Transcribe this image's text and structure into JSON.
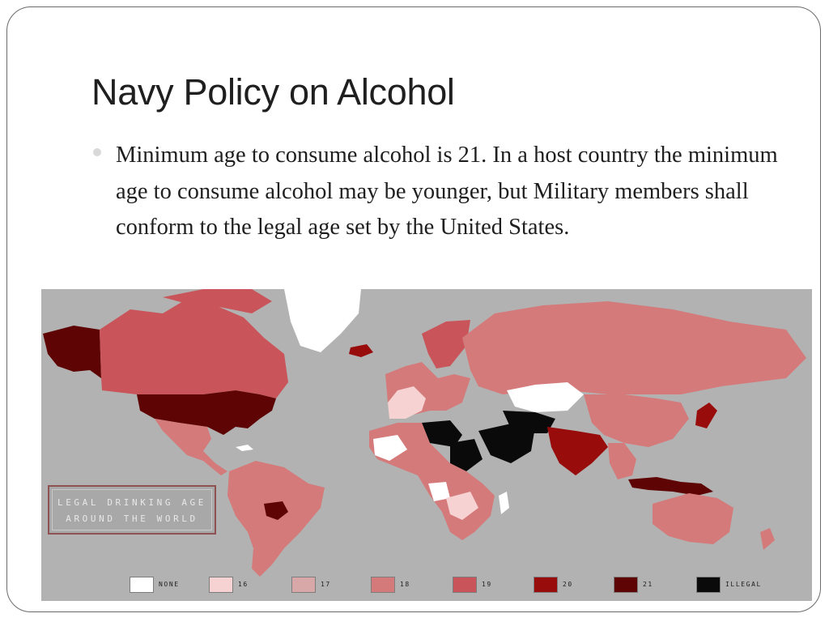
{
  "slide": {
    "title": "Navy Policy on Alcohol",
    "bullet_text": "Minimum age to consume alcohol is 21. In a host country the minimum age to consume alcohol may be younger, but Military members shall conform to the legal age set by the United States."
  },
  "map": {
    "title_lines": [
      "LEGAL DRINKING AGE",
      "AROUND THE WORLD"
    ],
    "background_color": "#b2b2b2",
    "legend": [
      {
        "label": "NONE",
        "color": "#ffffff"
      },
      {
        "label": "16",
        "color": "#f6d2d2"
      },
      {
        "label": "17",
        "color": "#d8a7a7"
      },
      {
        "label": "18",
        "color": "#d47a7a"
      },
      {
        "label": "19",
        "color": "#c9555a"
      },
      {
        "label": "20",
        "color": "#980c0c"
      },
      {
        "label": "21",
        "color": "#5e0404"
      },
      {
        "label": "ILLEGAL",
        "color": "#0a0a0a"
      }
    ]
  }
}
